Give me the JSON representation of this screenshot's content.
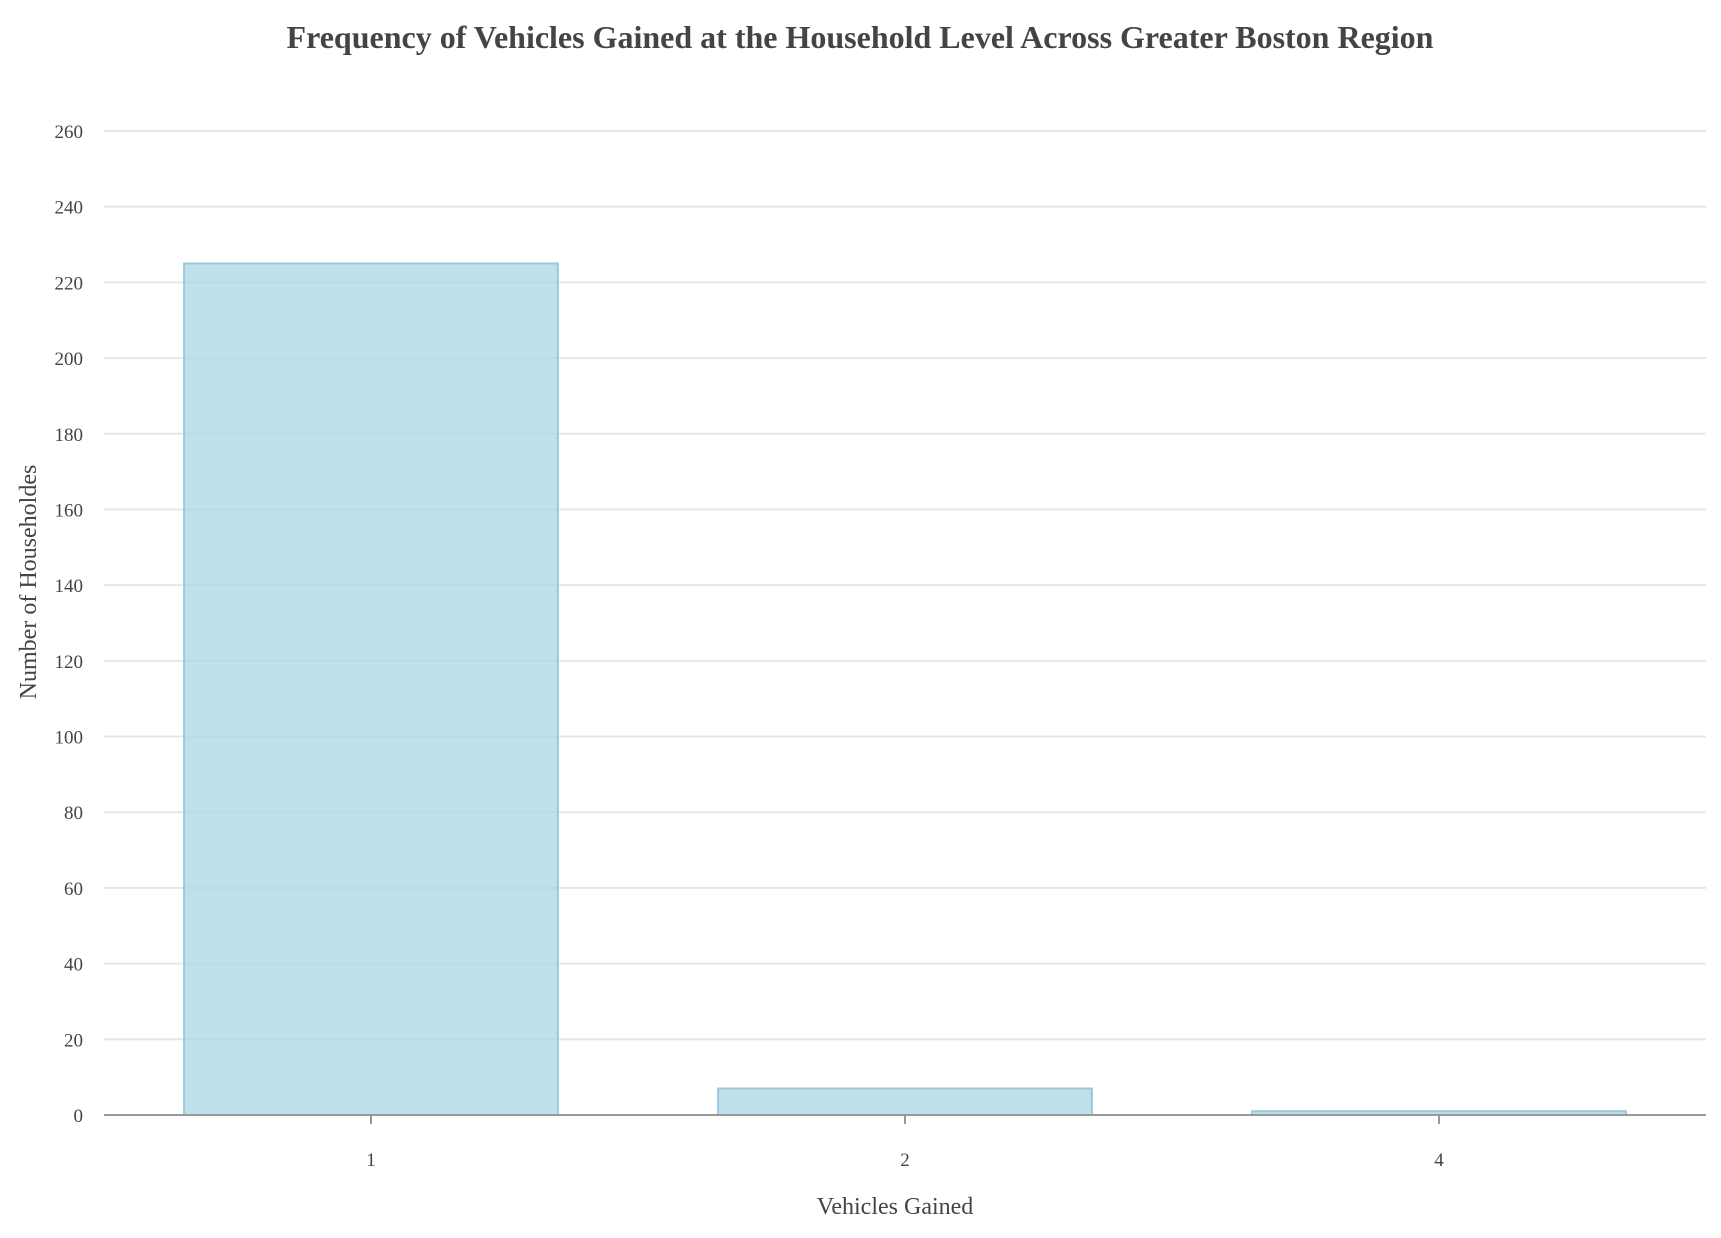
{
  "chart_data": {
    "type": "bar",
    "title": "Frequency of Vehicles Gained at the Household Level Across Greater Boston Region",
    "xlabel": "Vehicles Gained",
    "ylabel": "Number of Householdes",
    "categories": [
      "1",
      "2",
      "4"
    ],
    "values": [
      225,
      7,
      1
    ],
    "ylim": [
      0,
      260
    ],
    "yticks": [
      0,
      20,
      40,
      60,
      80,
      100,
      120,
      140,
      160,
      180,
      200,
      220,
      240,
      260
    ],
    "grid": true,
    "legend": "none",
    "colors": {
      "bar_fill": "#add8e6",
      "bar_stroke": "#9cc8dc",
      "text": "#444444",
      "grid": "#e6e6e6",
      "axis": "#999999"
    }
  }
}
